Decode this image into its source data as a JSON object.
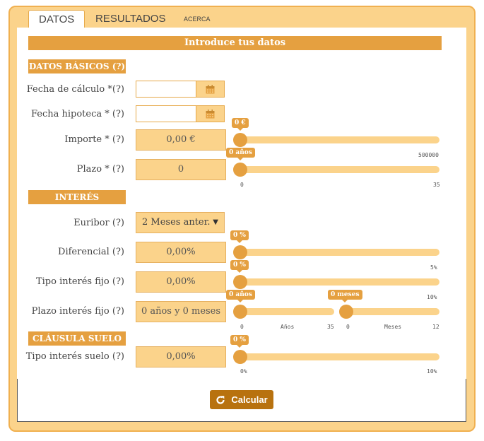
{
  "tabs": [
    {
      "label": "DATOS"
    },
    {
      "label": "RESULTADOS"
    },
    {
      "label": "ACERCA DE"
    }
  ],
  "banner": "Introduce tus datos",
  "sections": {
    "basicos": "DATOS BÁSICOS (?)",
    "interes": "INTERÉS",
    "suelo": "CLÁUSULA SUELO"
  },
  "fields": {
    "fecha_calculo": {
      "label": "Fecha de cálculo *(?)",
      "value": ""
    },
    "fecha_hipoteca": {
      "label": "Fecha hipoteca * (?)",
      "value": ""
    },
    "importe": {
      "label": "Importe * (?)",
      "value": "0,00 €",
      "slider_tip": "0 €",
      "slider_max_label": "500000",
      "slider_value": 0
    },
    "plazo": {
      "label": "Plazo * (?)",
      "value": "0",
      "slider_tip": "0 años",
      "min_label": "0",
      "max_label": "35",
      "slider_value": 0
    },
    "euribor": {
      "label": "Euribor  (?)",
      "selected": "2 Meses anter."
    },
    "diferencial": {
      "label": "Diferencial (?)",
      "value": "0,00%",
      "slider_tip": "0 %",
      "max_label": "5%",
      "slider_value": 0
    },
    "tipo_fijo": {
      "label": "Tipo interés fijo (?)",
      "value": "0,00%",
      "slider_tip": "0 %",
      "max_label": "10%",
      "slider_value": 0
    },
    "plazo_fijo": {
      "label": "Plazo interés fijo (?)",
      "value": "0 años y 0 meses",
      "years_tip": "0 años",
      "months_tip": "0 meses",
      "years_min": "0",
      "years_unit": "Años",
      "years_max": "35",
      "months_min": "0",
      "months_unit": "Meses",
      "months_max": "12",
      "years_value": 0,
      "months_value": 0
    },
    "tipo_suelo": {
      "label": "Tipo interés suelo  (?)",
      "value": "0,00%",
      "slider_tip": "0 %",
      "min_label": "0%",
      "max_label": "10%",
      "slider_value": 0
    }
  },
  "calc_button": "Calcular",
  "icons": {
    "calendar": "calendar-icon",
    "refresh": "refresh-icon",
    "dropdown": "chevron-down-icon"
  },
  "colors": {
    "accent": "#e5a040",
    "light": "#fbd38b",
    "button": "#b8720f"
  }
}
